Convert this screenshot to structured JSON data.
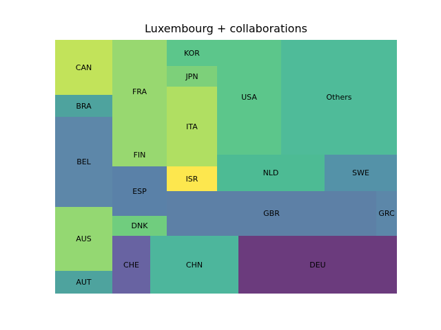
{
  "chart_data": {
    "type": "treemap",
    "title": "Luxembourg + collaborations",
    "cells": [
      {
        "label": "CAN",
        "color": "#c2e35a"
      },
      {
        "label": "BRA",
        "color": "#4ea39e"
      },
      {
        "label": "BEL",
        "color": "#5d87a9"
      },
      {
        "label": "AUS",
        "color": "#94d872"
      },
      {
        "label": "AUT",
        "color": "#4ea39e"
      },
      {
        "label": "FRA",
        "color": "#98d870"
      },
      {
        "label": "FIN",
        "color": "#98d870"
      },
      {
        "label": "ESP",
        "color": "#5a81a8"
      },
      {
        "label": "DNK",
        "color": "#70cd7e"
      },
      {
        "label": "KOR",
        "color": "#5cc68b"
      },
      {
        "label": "JPN",
        "color": "#7dd07a"
      },
      {
        "label": "ITA",
        "color": "#b0df62"
      },
      {
        "label": "ISR",
        "color": "#fde74e"
      },
      {
        "label": "USA",
        "color": "#5cc68b"
      },
      {
        "label": "Others",
        "color": "#4fbb99"
      },
      {
        "label": "NLD",
        "color": "#4dbb94"
      },
      {
        "label": "SWE",
        "color": "#5492a8"
      },
      {
        "label": "GBR",
        "color": "#5d80a6"
      },
      {
        "label": "GRC",
        "color": "#5c87a9"
      },
      {
        "label": "CHE",
        "color": "#6863a2"
      },
      {
        "label": "CHN",
        "color": "#4db69c"
      },
      {
        "label": "DEU",
        "color": "#6b3b7d"
      }
    ]
  }
}
